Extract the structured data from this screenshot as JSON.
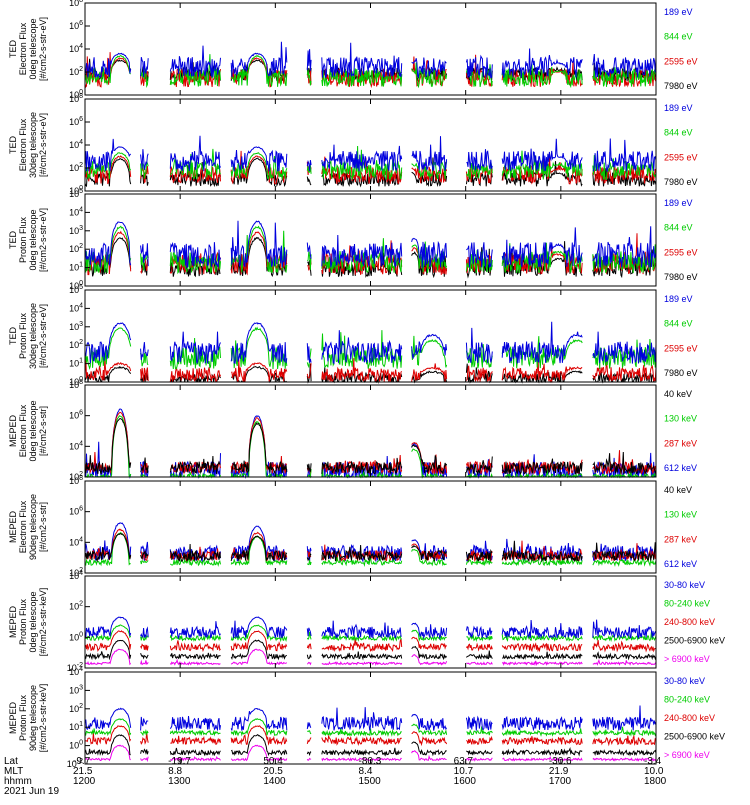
{
  "chart_data": {
    "type": "line",
    "x_axis": {
      "start_minute": 1200,
      "end_minute": 1800,
      "tick_minutes": [
        1200,
        1300,
        1400,
        1500,
        1600,
        1700,
        1800
      ]
    },
    "panels": [
      {
        "id": "ted-electron-0deg",
        "ylabel": [
          "TED",
          "Electron Flux",
          "0deg telescope",
          "[#/cm2-s-str-eV]"
        ],
        "log_min": 0,
        "log_max": 8,
        "tick_labels": [
          "10^0",
          "10^2",
          "10^4",
          "10^6",
          "10^8"
        ],
        "series": [
          {
            "name": "7980 eV",
            "color": "#000000",
            "base": 1.8,
            "peak": 3.0,
            "noise": 0.6
          },
          {
            "name": "2595 eV",
            "color": "#dd0000",
            "base": 1.5,
            "peak": 3.2,
            "noise": 0.8
          },
          {
            "name": "844 eV",
            "color": "#00cc00",
            "base": 1.5,
            "peak": 3.4,
            "noise": 0.8
          },
          {
            "name": "189 eV",
            "color": "#0000dd",
            "base": 2.4,
            "peak": 3.6,
            "noise": 0.9
          }
        ],
        "events": [
          [
            1237,
            10,
            1.0
          ],
          [
            1381,
            10,
            1.0
          ],
          [
            1540,
            8,
            0.4
          ],
          [
            1697,
            8,
            0.3
          ]
        ]
      },
      {
        "id": "ted-electron-30deg",
        "ylabel": [
          "TED",
          "Electron Flux",
          "30deg telescope",
          "[#/cm2-s-str-eV]"
        ],
        "log_min": 0,
        "log_max": 8,
        "tick_labels": [
          "10^0",
          "10^2",
          "10^4",
          "10^6",
          "10^8"
        ],
        "series": [
          {
            "name": "7980 eV",
            "color": "#000000",
            "base": 1.0,
            "peak": 2.8,
            "noise": 0.6
          },
          {
            "name": "2595 eV",
            "color": "#dd0000",
            "base": 1.4,
            "peak": 3.0,
            "noise": 0.8
          },
          {
            "name": "844 eV",
            "color": "#00cc00",
            "base": 1.8,
            "peak": 3.3,
            "noise": 0.8
          },
          {
            "name": "189 eV",
            "color": "#0000dd",
            "base": 2.6,
            "peak": 3.8,
            "noise": 0.9
          }
        ],
        "events": [
          [
            1237,
            10,
            1.0
          ],
          [
            1381,
            10,
            1.0
          ],
          [
            1540,
            8,
            0.4
          ],
          [
            1697,
            8,
            0.3
          ]
        ]
      },
      {
        "id": "ted-proton-0deg",
        "ylabel": [
          "TED",
          "Proton Flux",
          "0deg telescope",
          "[#/cm2-s-str-eV]"
        ],
        "log_min": 0,
        "log_max": 5,
        "tick_labels": [
          "10^0",
          "10^1",
          "10^2",
          "10^3",
          "10^4",
          "10^5"
        ],
        "series": [
          {
            "name": "7980 eV",
            "color": "#000000",
            "base": 1.0,
            "peak": 2.6,
            "noise": 0.5
          },
          {
            "name": "2595 eV",
            "color": "#dd0000",
            "base": 1.2,
            "peak": 2.9,
            "noise": 0.6
          },
          {
            "name": "844 eV",
            "color": "#00cc00",
            "base": 1.3,
            "peak": 3.2,
            "noise": 0.6
          },
          {
            "name": "189 eV",
            "color": "#0000dd",
            "base": 1.7,
            "peak": 3.5,
            "noise": 0.7
          }
        ],
        "events": [
          [
            1237,
            10,
            1.0
          ],
          [
            1381,
            10,
            1.0
          ],
          [
            1546,
            5,
            0.5
          ],
          [
            1697,
            8,
            0.3
          ]
        ]
      },
      {
        "id": "ted-proton-30deg",
        "ylabel": [
          "TED",
          "Proton Flux",
          "30deg telescope",
          "[#/cm2-s-str-eV]"
        ],
        "log_min": 0,
        "log_max": 5,
        "tick_labels": [
          "10^0",
          "10^1",
          "10^2",
          "10^3",
          "10^4",
          "10^5"
        ],
        "series": [
          {
            "name": "7980 eV",
            "color": "#000000",
            "base": 0.2,
            "peak": 0.8,
            "noise": 0.3
          },
          {
            "name": "2595 eV",
            "color": "#dd0000",
            "base": 0.4,
            "peak": 1.0,
            "noise": 0.4
          },
          {
            "name": "844 eV",
            "color": "#00cc00",
            "base": 1.3,
            "peak": 2.9,
            "noise": 0.6
          },
          {
            "name": "189 eV",
            "color": "#0000dd",
            "base": 1.6,
            "peak": 3.2,
            "noise": 0.6
          }
        ],
        "events": [
          [
            1237,
            12,
            1.0
          ],
          [
            1381,
            12,
            1.0
          ],
          [
            1565,
            12,
            0.6
          ],
          [
            1717,
            12,
            0.6
          ]
        ]
      },
      {
        "id": "meped-electron-0deg",
        "ylabel": [
          "MEPED",
          "Electron Flux",
          "0deg telescope",
          "[#/cm2-s-str]"
        ],
        "log_min": 2,
        "log_max": 8,
        "tick_labels": [
          "10^2",
          "10^4",
          "10^6",
          "10^8"
        ],
        "series": [
          {
            "name": "612 keV",
            "color": "#0000dd",
            "base": 2.3,
            "peak": 6.4,
            "noise": 0.7
          },
          {
            "name": "287 keV",
            "color": "#dd0000",
            "base": 2.6,
            "peak": 6.2,
            "noise": 0.4
          },
          {
            "name": "130 keV",
            "color": "#00cc00",
            "base": 2.0,
            "peak": 6.0,
            "noise": 0.2
          },
          {
            "name": "40 keV",
            "color": "#000000",
            "base": 2.6,
            "peak": 5.8,
            "noise": 0.4
          }
        ],
        "events": [
          [
            1237,
            9,
            1.0
          ],
          [
            1381,
            9,
            0.9
          ],
          [
            1546,
            8,
            0.45
          ]
        ]
      },
      {
        "id": "meped-electron-90deg",
        "ylabel": [
          "MEPED",
          "Electron Flux",
          "90deg telescope",
          "[#/cm2-s-str]"
        ],
        "log_min": 1,
        "log_max": 8,
        "tick_labels": [
          "10^2",
          "10^4",
          "10^6",
          "10^8"
        ],
        "series": [
          {
            "name": "612 keV",
            "color": "#0000dd",
            "base": 2.5,
            "peak": 5.4,
            "noise": 0.6
          },
          {
            "name": "287 keV",
            "color": "#dd0000",
            "base": 2.3,
            "peak": 4.8,
            "noise": 0.4
          },
          {
            "name": "130 keV",
            "color": "#00cc00",
            "base": 1.8,
            "peak": 4.6,
            "noise": 0.2
          },
          {
            "name": "40 keV",
            "color": "#000000",
            "base": 2.3,
            "peak": 4.4,
            "noise": 0.4
          }
        ],
        "events": [
          [
            1237,
            9,
            0.8
          ],
          [
            1381,
            9,
            0.7
          ],
          [
            1546,
            6,
            0.35
          ]
        ]
      },
      {
        "id": "meped-proton-0deg",
        "ylabel": [
          "MEPED",
          "Proton Flux",
          "0deg telescope",
          "[#/cm2-s-str-keV]"
        ],
        "log_min": -3,
        "log_max": 5,
        "tick_labels": [
          "10^-2",
          "10^0",
          "10^2",
          "10^4"
        ],
        "series": [
          {
            "name": "> 6900 keV",
            "color": "#ee00ee",
            "base": -2.6,
            "peak": -1.4,
            "noise": 0.1
          },
          {
            "name": "2500-6900 keV",
            "color": "#000000",
            "base": -2.0,
            "peak": -0.6,
            "noise": 0.2
          },
          {
            "name": "240-800 keV",
            "color": "#dd0000",
            "base": -1.2,
            "peak": 0.2,
            "noise": 0.3
          },
          {
            "name": "80-240 keV",
            "color": "#00cc00",
            "base": -0.4,
            "peak": 0.7,
            "noise": 0.2
          },
          {
            "name": "30-80 keV",
            "color": "#0000dd",
            "base": 0.1,
            "peak": 1.4,
            "noise": 0.5
          }
        ],
        "events": [
          [
            1237,
            10,
            1.0
          ],
          [
            1381,
            10,
            1.0
          ],
          [
            1546,
            5,
            0.6
          ]
        ]
      },
      {
        "id": "meped-proton-90deg",
        "ylabel": [
          "MEPED",
          "Proton Flux",
          "90deg telescope",
          "[#/cm2-s-str-keV]"
        ],
        "log_min": -3,
        "log_max": 5,
        "tick_labels": [
          "10^-2",
          "10^0",
          "10^1",
          "10^2",
          "10^3",
          "10^4"
        ],
        "series": [
          {
            "name": "> 6900 keV",
            "color": "#ee00ee",
            "base": -2.6,
            "peak": -1.4,
            "noise": 0.1
          },
          {
            "name": "2500-6900 keV",
            "color": "#000000",
            "base": -2.0,
            "peak": -0.5,
            "noise": 0.2
          },
          {
            "name": "240-800 keV",
            "color": "#dd0000",
            "base": -1.0,
            "peak": 0.3,
            "noise": 0.3
          },
          {
            "name": "80-240 keV",
            "color": "#00cc00",
            "base": -0.3,
            "peak": 0.9,
            "noise": 0.2
          },
          {
            "name": "30-80 keV",
            "color": "#0000dd",
            "base": 0.5,
            "peak": 1.8,
            "noise": 0.6
          }
        ],
        "events": [
          [
            1237,
            10,
            1.0
          ],
          [
            1381,
            10,
            1.0
          ],
          [
            1546,
            5,
            0.6
          ]
        ]
      }
    ]
  },
  "footer": {
    "row_labels": [
      "Lat",
      "MLT",
      "hhmm",
      "2021 Jun 19"
    ],
    "columns": [
      {
        "lat": "-9.7",
        "mlt": "21.5",
        "hhmm": "1200"
      },
      {
        "lat": "-19.7",
        "mlt": "8.8",
        "hhmm": "1300"
      },
      {
        "lat": "50.4",
        "mlt": "20.5",
        "hhmm": "1400"
      },
      {
        "lat": "-80.3",
        "mlt": "8.4",
        "hhmm": "1500"
      },
      {
        "lat": "63.7",
        "mlt": "10.7",
        "hhmm": "1600"
      },
      {
        "lat": "-30.6",
        "mlt": "21.9",
        "hhmm": "1700"
      },
      {
        "lat": "-3.4",
        "mlt": "10.0",
        "hhmm": "1800"
      }
    ]
  }
}
